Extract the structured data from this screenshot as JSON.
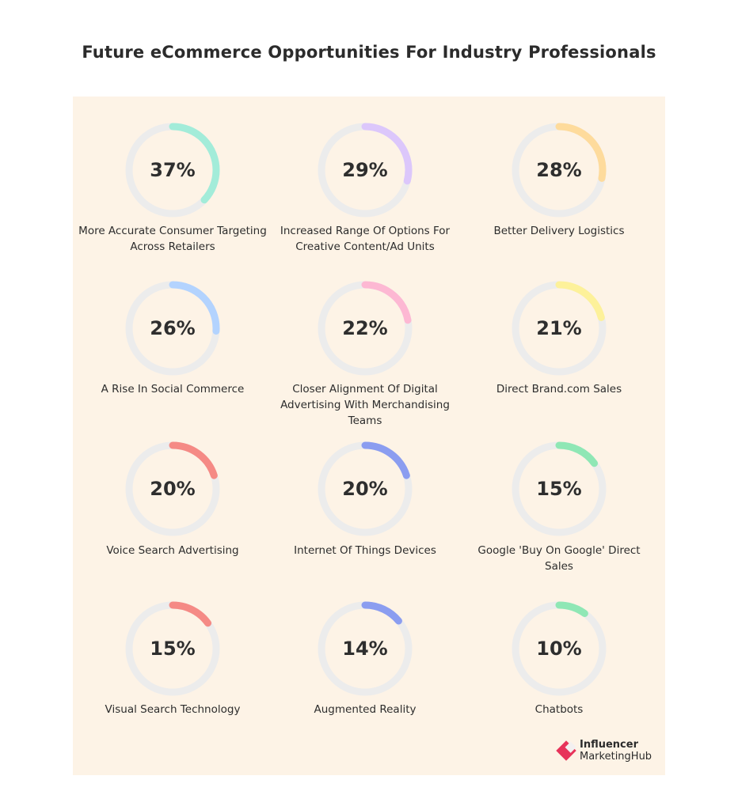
{
  "title": "Future eCommerce Opportunities For Industry Professionals",
  "logo": {
    "line1": "Influencer",
    "line2": "MarketingHub"
  },
  "chart_data": {
    "type": "donut-grid",
    "title": "Future eCommerce Opportunities For Industry Professionals",
    "unit": "%",
    "items": [
      {
        "label": "More Accurate Consumer Targeting Across Retailers",
        "value": 37,
        "display": "37%",
        "color": "#a3ecd9"
      },
      {
        "label": "Increased Range Of Options For Creative Content/Ad Units",
        "value": 29,
        "display": "29%",
        "color": "#dcc7fb"
      },
      {
        "label": "Better Delivery Logistics",
        "value": 28,
        "display": "28%",
        "color": "#fedb9c"
      },
      {
        "label": "A Rise In Social Commerce",
        "value": 26,
        "display": "26%",
        "color": "#b3d3fe"
      },
      {
        "label": "Closer Alignment Of Digital Advertising With Merchandising Teams",
        "value": 22,
        "display": "22%",
        "color": "#fdb8d3"
      },
      {
        "label": "Direct Brand.com Sales",
        "value": 21,
        "display": "21%",
        "color": "#fdf19a"
      },
      {
        "label": "Voice Search Advertising",
        "value": 20,
        "display": "20%",
        "color": "#f58a85"
      },
      {
        "label": "Internet Of Things Devices",
        "value": 20,
        "display": "20%",
        "color": "#8b9df0"
      },
      {
        "label": "Google 'Buy On Google' Direct Sales",
        "value": 15,
        "display": "15%",
        "color": "#8fe7b5"
      },
      {
        "label": "Visual Search Technology",
        "value": 15,
        "display": "15%",
        "color": "#f58a85"
      },
      {
        "label": "Augmented Reality",
        "value": 14,
        "display": "14%",
        "color": "#8b9df0"
      },
      {
        "label": "Chatbots",
        "value": 10,
        "display": "10%",
        "color": "#8fe7b5"
      }
    ],
    "track_color": "#ececec",
    "background": "#fdf3e6"
  }
}
